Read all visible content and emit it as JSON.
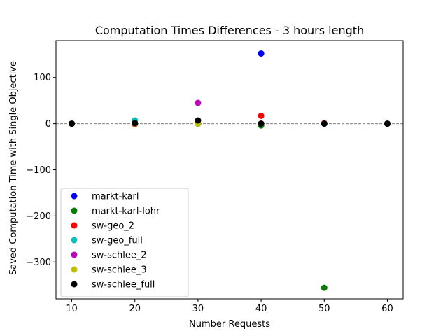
{
  "chart_data": {
    "type": "scatter",
    "title": "Computation Times Differences - 3 hours length",
    "xlabel": "Number Requests",
    "ylabel": "Saved Computation Time with Single Objective",
    "xlim": [
      7.5,
      62.5
    ],
    "ylim": [
      -380,
      180
    ],
    "xticks": [
      10,
      20,
      30,
      40,
      50,
      60
    ],
    "yticks": [
      -300,
      -200,
      -100,
      0,
      100
    ],
    "ytick_labels": [
      "−300",
      "−200",
      "−100",
      "0",
      "100"
    ],
    "grid": false,
    "reference_line": {
      "y": 0,
      "style": "dashed",
      "color": "#808080"
    },
    "legend_position": "lower-left",
    "series": [
      {
        "name": "markt-karl",
        "color": "#0000ff",
        "points": [
          [
            10,
            0
          ],
          [
            20,
            0
          ],
          [
            30,
            0
          ],
          [
            40,
            152
          ],
          [
            50,
            0
          ],
          [
            60,
            0
          ]
        ]
      },
      {
        "name": "markt-karl-lohr",
        "color": "#008000",
        "points": [
          [
            10,
            0
          ],
          [
            20,
            0
          ],
          [
            30,
            0
          ],
          [
            40,
            -4
          ],
          [
            50,
            -356
          ],
          [
            60,
            0
          ]
        ]
      },
      {
        "name": "sw-geo_2",
        "color": "#ff0000",
        "points": [
          [
            10,
            0
          ],
          [
            20,
            -1
          ],
          [
            30,
            0
          ],
          [
            40,
            17
          ],
          [
            50,
            1
          ],
          [
            60,
            0
          ]
        ]
      },
      {
        "name": "sw-geo_full",
        "color": "#00bfbf",
        "points": [
          [
            10,
            0
          ],
          [
            20,
            7
          ],
          [
            30,
            0
          ],
          [
            40,
            0
          ],
          [
            50,
            0
          ],
          [
            60,
            0
          ]
        ]
      },
      {
        "name": "sw-schlee_2",
        "color": "#bf00bf",
        "points": [
          [
            10,
            0
          ],
          [
            20,
            0
          ],
          [
            30,
            45
          ],
          [
            40,
            0
          ],
          [
            50,
            0
          ],
          [
            60,
            0
          ]
        ]
      },
      {
        "name": "sw-schlee_3",
        "color": "#bfbf00",
        "points": [
          [
            10,
            0
          ],
          [
            20,
            0
          ],
          [
            30,
            0
          ],
          [
            40,
            0
          ],
          [
            50,
            0
          ],
          [
            60,
            0
          ]
        ]
      },
      {
        "name": "sw-schlee_full",
        "color": "#000000",
        "points": [
          [
            10,
            0
          ],
          [
            20,
            1
          ],
          [
            30,
            7
          ],
          [
            40,
            0
          ],
          [
            50,
            0
          ],
          [
            60,
            0
          ]
        ]
      }
    ]
  }
}
